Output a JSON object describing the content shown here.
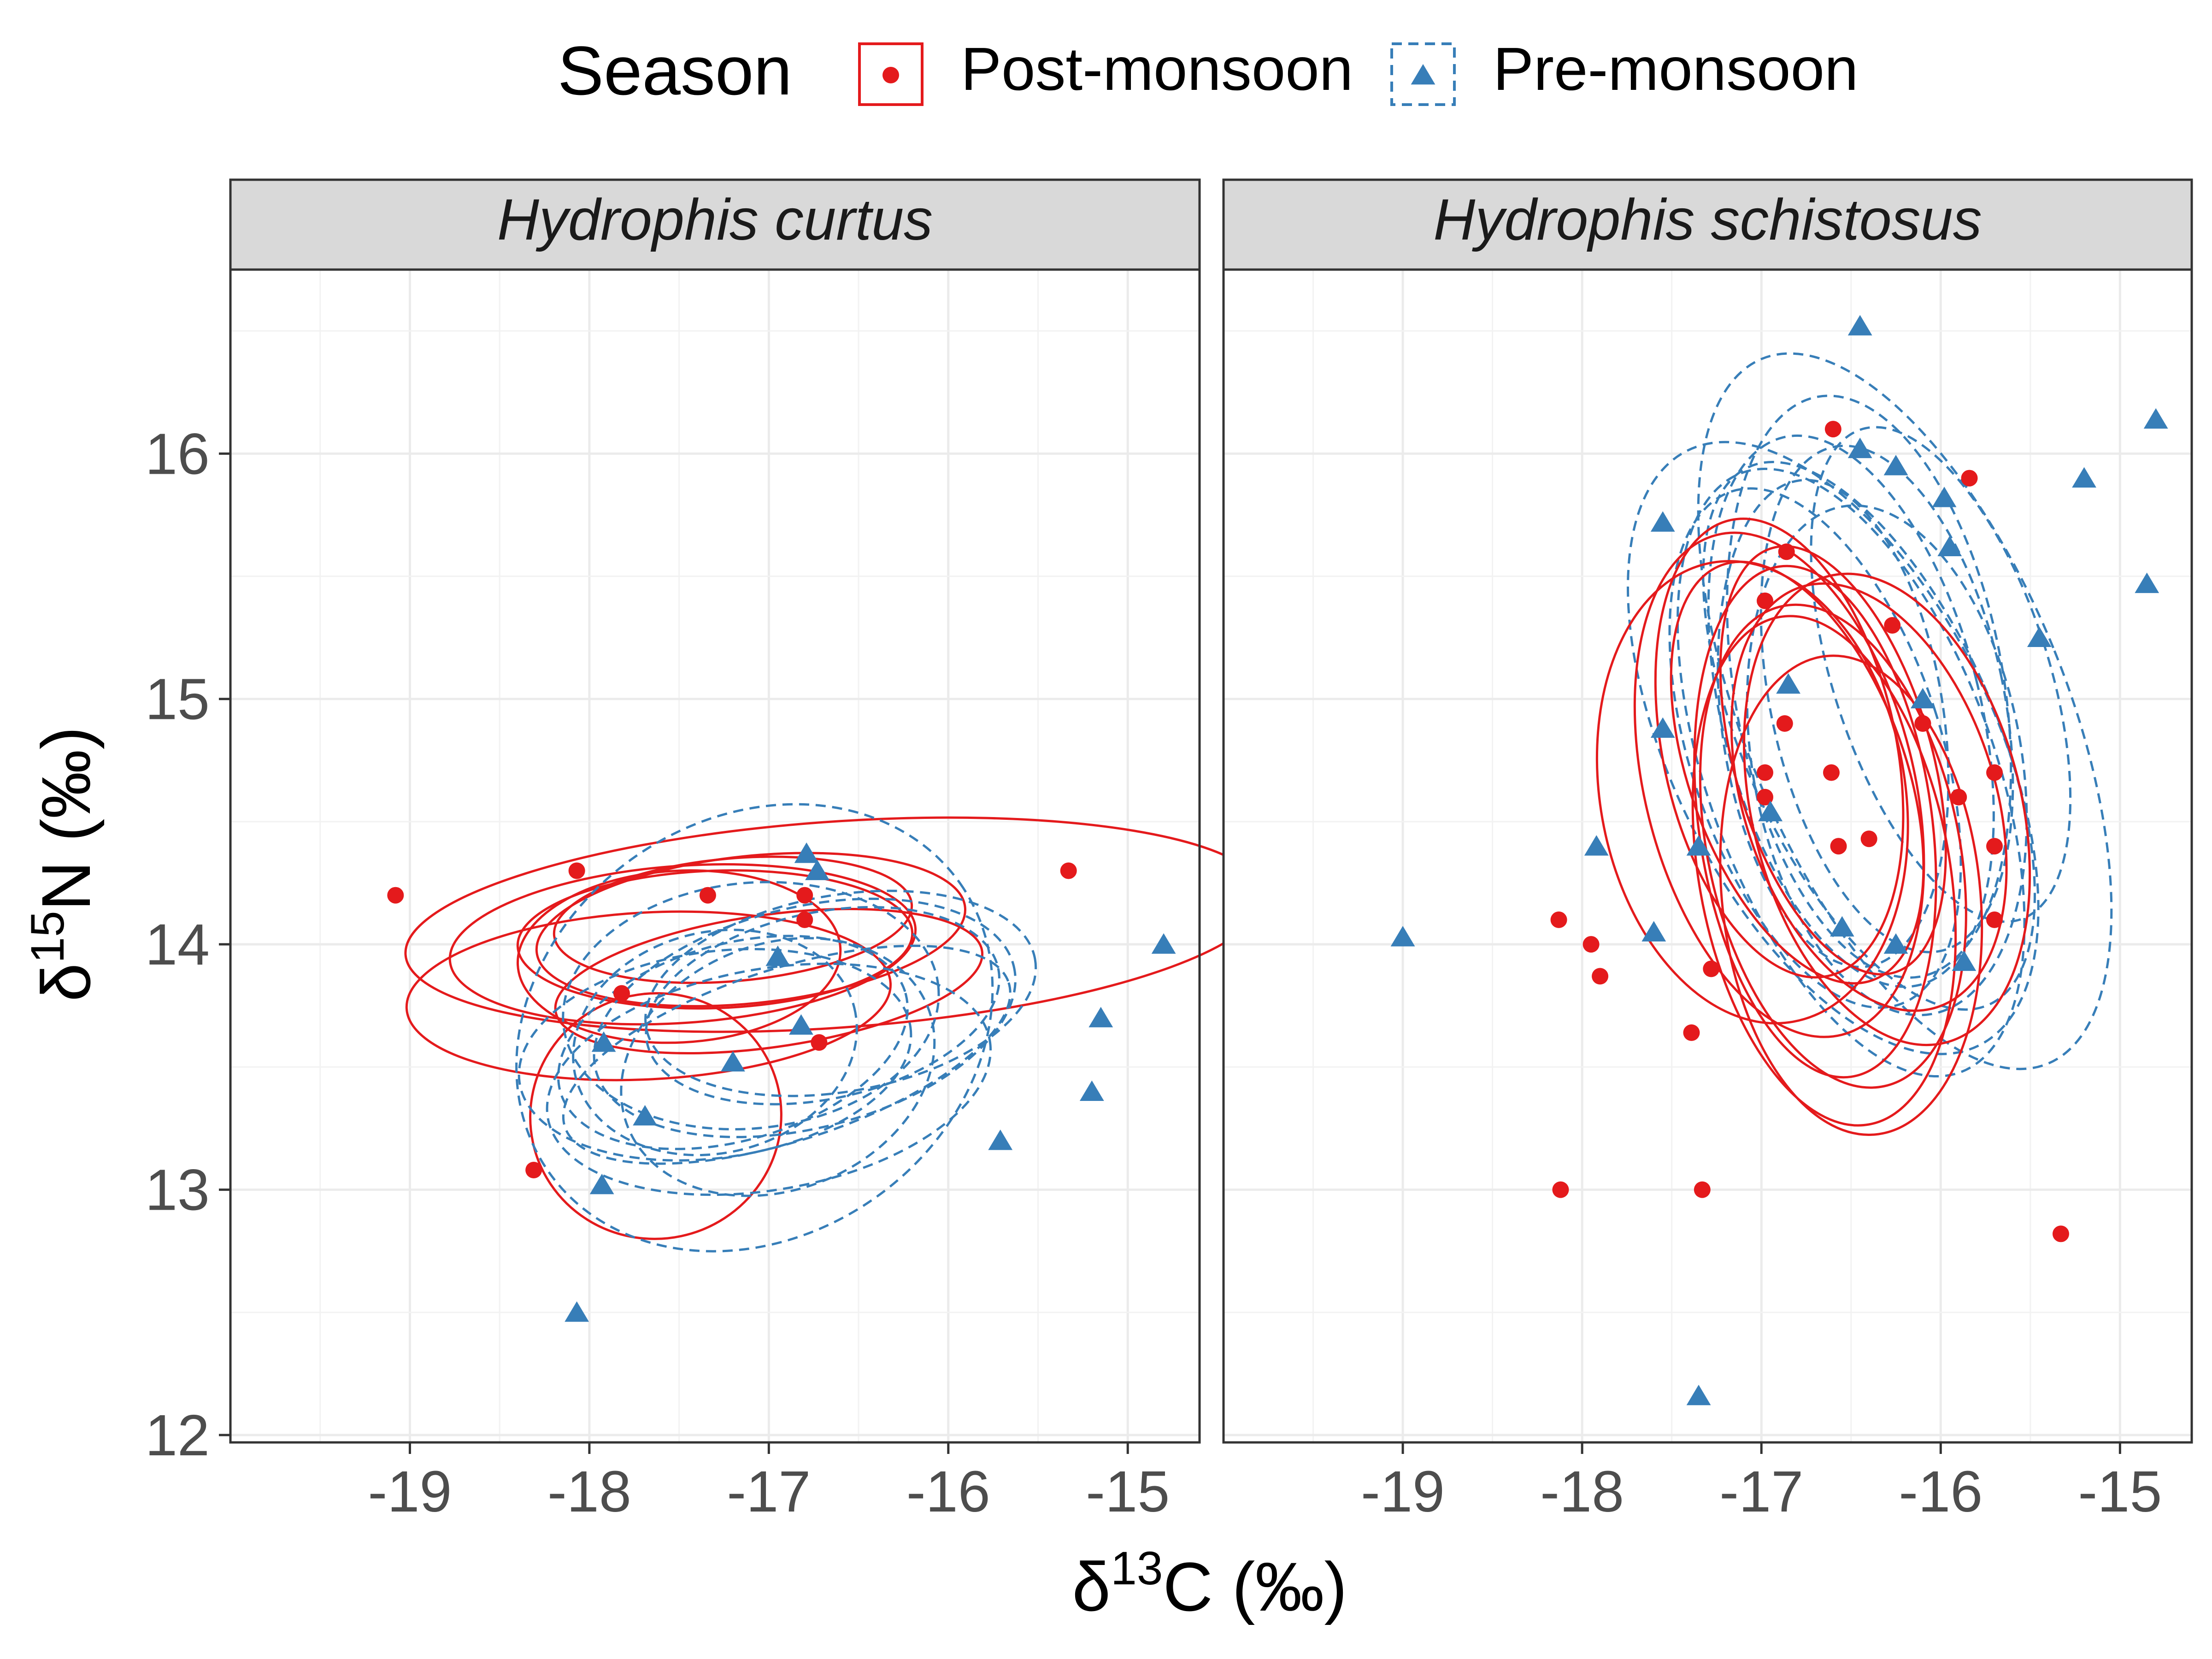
{
  "chart_data": {
    "type": "scatter",
    "facets": [
      "Hydrophis curtus",
      "Hydrophis schistosus"
    ],
    "xlabel": "δ13C (‰)",
    "ylabel": "δ15N (‰)",
    "xlim": [
      -20,
      -14.6
    ],
    "ylim": [
      11.97,
      16.75
    ],
    "x_ticks": [
      -19,
      -18,
      -17,
      -16,
      -15
    ],
    "y_ticks": [
      12,
      13,
      14,
      15,
      16
    ],
    "x_tick_labels": [
      "-19",
      "-18",
      "-17",
      "-16",
      "-15"
    ],
    "y_tick_labels": [
      "12",
      "13",
      "14",
      "15",
      "16"
    ],
    "grid": true,
    "legend": {
      "title": "Season",
      "position": "top",
      "entries": [
        {
          "label": "Post-monsoon",
          "color": "#E41A1C",
          "shape": "circle",
          "line": "solid"
        },
        {
          "label": "Pre-monsoon",
          "color": "#377EB8",
          "shape": "triangle",
          "line": "dashed"
        }
      ]
    },
    "panels": [
      {
        "name": "Hydrophis curtus",
        "series": [
          {
            "name": "Post-monsoon",
            "x": [
              -19.08,
              -18.07,
              -17.34,
              -16.8,
              -16.8,
              -16.72,
              -17.82,
              -18.31,
              -15.33
            ],
            "y": [
              14.2,
              14.3,
              14.2,
              14.2,
              14.1,
              13.6,
              13.8,
              13.08,
              14.3
            ]
          },
          {
            "name": "Pre-monsoon",
            "x": [
              -17.92,
              -17.69,
              -17.93,
              -18.07,
              -17.2,
              -16.95,
              -16.82,
              -16.79,
              -16.73,
              -15.71,
              -15.2,
              -15.15,
              -14.8
            ],
            "y": [
              13.6,
              13.3,
              13.02,
              12.5,
              13.52,
              13.95,
              13.67,
              14.37,
              14.3,
              13.2,
              13.4,
              13.7,
              14.0
            ]
          }
        ],
        "ellipses": [
          {
            "season": "Post-monsoon",
            "cx": -17.48,
            "cy": 14.0,
            "rx": 1.3,
            "ry": 0.32,
            "angle": 4
          },
          {
            "season": "Post-monsoon",
            "cx": -16.63,
            "cy": 14.08,
            "rx": 2.4,
            "ry": 0.42,
            "angle": 4
          },
          {
            "season": "Post-monsoon",
            "cx": -17.67,
            "cy": 13.79,
            "rx": 1.35,
            "ry": 0.34,
            "angle": 3
          },
          {
            "season": "Post-monsoon",
            "cx": -17.1,
            "cy": 14.06,
            "rx": 1.2,
            "ry": 0.3,
            "angle": 6
          },
          {
            "season": "Post-monsoon",
            "cx": -17.2,
            "cy": 14.1,
            "rx": 1.0,
            "ry": 0.25,
            "angle": 5
          },
          {
            "season": "Post-monsoon",
            "cx": -17.3,
            "cy": 14.02,
            "rx": 1.1,
            "ry": 0.28,
            "angle": 2
          },
          {
            "season": "Post-monsoon",
            "cx": -17.0,
            "cy": 13.85,
            "rx": 1.2,
            "ry": 0.27,
            "angle": 8
          },
          {
            "season": "Post-monsoon",
            "cx": -17.5,
            "cy": 13.95,
            "rx": 0.9,
            "ry": 0.35,
            "angle": 3
          },
          {
            "season": "Post-monsoon",
            "cx": -17.63,
            "cy": 13.3,
            "rx": 0.7,
            "ry": 0.5,
            "angle": 12
          },
          {
            "season": "Pre-monsoon",
            "cx": -17.08,
            "cy": 13.66,
            "rx": 1.4,
            "ry": 0.85,
            "angle": 35
          },
          {
            "season": "Pre-monsoon",
            "cx": -16.8,
            "cy": 13.7,
            "rx": 1.2,
            "ry": 0.45,
            "angle": 14
          },
          {
            "season": "Pre-monsoon",
            "cx": -17.0,
            "cy": 13.45,
            "rx": 1.25,
            "ry": 0.45,
            "angle": 10
          },
          {
            "season": "Pre-monsoon",
            "cx": -17.2,
            "cy": 13.6,
            "rx": 1.0,
            "ry": 0.4,
            "angle": 16
          },
          {
            "season": "Pre-monsoon",
            "cx": -16.7,
            "cy": 13.75,
            "rx": 1.0,
            "ry": 0.38,
            "angle": 12
          },
          {
            "season": "Pre-monsoon",
            "cx": -17.3,
            "cy": 13.55,
            "rx": 1.1,
            "ry": 0.42,
            "angle": 8
          },
          {
            "season": "Pre-monsoon",
            "cx": -16.9,
            "cy": 13.55,
            "rx": 1.3,
            "ry": 0.35,
            "angle": 18
          },
          {
            "season": "Pre-monsoon",
            "cx": -17.1,
            "cy": 13.75,
            "rx": 1.05,
            "ry": 0.5,
            "angle": 6
          },
          {
            "season": "Pre-monsoon",
            "cx": -16.95,
            "cy": 13.5,
            "rx": 0.9,
            "ry": 0.5,
            "angle": 22
          },
          {
            "season": "Pre-monsoon",
            "cx": -16.6,
            "cy": 13.8,
            "rx": 1.1,
            "ry": 0.4,
            "angle": 10
          },
          {
            "season": "Pre-monsoon",
            "cx": -17.3,
            "cy": 13.6,
            "rx": 0.8,
            "ry": 0.45,
            "angle": 14
          }
        ]
      },
      {
        "name": "Hydrophis schistosus",
        "series": [
          {
            "name": "Post-monsoon",
            "x": [
              -16.6,
              -15.84,
              -16.86,
              -16.98,
              -16.27,
              -16.87,
              -16.98,
              -16.98,
              -16.61,
              -16.57,
              -16.1,
              -15.9,
              -15.7,
              -15.7,
              -16.4,
              -16.1,
              -15.7,
              -18.13,
              -17.95,
              -17.9,
              -17.28,
              -17.39,
              -18.12,
              -17.33,
              -15.33
            ],
            "y": [
              16.1,
              15.9,
              15.6,
              15.4,
              15.3,
              14.9,
              14.7,
              14.6,
              14.7,
              14.4,
              14.9,
              14.6,
              14.7,
              14.4,
              14.43,
              14.9,
              14.1,
              14.1,
              14.0,
              13.87,
              13.9,
              13.64,
              13.0,
              13.0,
              12.82
            ]
          },
          {
            "season": "Pre-monsoon",
            "name": "Pre-monsoon",
            "x": [
              -19.0,
              -16.45,
              -16.45,
              -16.25,
              -15.2,
              -14.8,
              -14.85,
              -15.45,
              -15.95,
              -15.98,
              -17.55,
              -17.55,
              -17.92,
              -17.6,
              -17.35,
              -16.95,
              -16.85,
              -16.1,
              -16.25,
              -15.87,
              -16.55,
              -17.35
            ],
            "y": [
              14.03,
              16.52,
              16.02,
              15.95,
              15.9,
              16.14,
              15.47,
              15.25,
              15.62,
              15.82,
              15.72,
              14.88,
              14.4,
              14.05,
              14.4,
              14.54,
              15.06,
              15.0,
              14.0,
              13.93,
              14.07,
              12.16
            ]
          }
        ],
        "ellipses": [
          {
            "season": "Pre-monsoon",
            "cx": -16.2,
            "cy": 14.95,
            "rx": 0.9,
            "ry": 1.55,
            "angle": 22
          },
          {
            "season": "Pre-monsoon",
            "cx": -16.4,
            "cy": 15.05,
            "rx": 0.75,
            "ry": 1.2,
            "angle": 10
          },
          {
            "season": "Pre-monsoon",
            "cx": -16.5,
            "cy": 14.95,
            "rx": 0.72,
            "ry": 1.15,
            "angle": 14
          },
          {
            "season": "Pre-monsoon",
            "cx": -16.7,
            "cy": 14.8,
            "rx": 0.7,
            "ry": 1.1,
            "angle": 18
          },
          {
            "season": "Pre-monsoon",
            "cx": -16.5,
            "cy": 14.7,
            "rx": 0.8,
            "ry": 1.3,
            "angle": 20
          },
          {
            "season": "Pre-monsoon",
            "cx": -16.3,
            "cy": 15.0,
            "rx": 0.65,
            "ry": 1.05,
            "angle": 12
          },
          {
            "season": "Pre-monsoon",
            "cx": -16.6,
            "cy": 14.9,
            "rx": 0.62,
            "ry": 1.0,
            "angle": 8
          },
          {
            "season": "Pre-monsoon",
            "cx": -16.4,
            "cy": 14.85,
            "rx": 0.7,
            "ry": 1.2,
            "angle": 24
          },
          {
            "season": "Pre-monsoon",
            "cx": -16.0,
            "cy": 15.1,
            "rx": 0.6,
            "ry": 1.05,
            "angle": 18
          },
          {
            "season": "Pre-monsoon",
            "cx": -16.3,
            "cy": 14.75,
            "rx": 0.75,
            "ry": 1.05,
            "angle": 10
          },
          {
            "season": "Pre-monsoon",
            "cx": -16.6,
            "cy": 14.8,
            "rx": 0.9,
            "ry": 1.35,
            "angle": 26
          },
          {
            "season": "Post-monsoon",
            "cx": -16.9,
            "cy": 14.65,
            "rx": 0.75,
            "ry": 1.05,
            "angle": 14
          },
          {
            "season": "Post-monsoon",
            "cx": -16.5,
            "cy": 14.2,
            "rx": 0.72,
            "ry": 0.98,
            "angle": 6
          },
          {
            "season": "Post-monsoon",
            "cx": -16.6,
            "cy": 14.4,
            "rx": 0.7,
            "ry": 1.0,
            "angle": 12
          },
          {
            "season": "Post-monsoon",
            "cx": -17.05,
            "cy": 14.62,
            "rx": 0.85,
            "ry": 0.95,
            "angle": 10
          },
          {
            "season": "Post-monsoon",
            "cx": -16.7,
            "cy": 14.5,
            "rx": 0.65,
            "ry": 1.05,
            "angle": 8
          },
          {
            "season": "Post-monsoon",
            "cx": -16.4,
            "cy": 14.6,
            "rx": 0.7,
            "ry": 0.9,
            "angle": 18
          },
          {
            "season": "Post-monsoon",
            "cx": -16.8,
            "cy": 14.7,
            "rx": 0.6,
            "ry": 0.9,
            "angle": 20
          },
          {
            "season": "Post-monsoon",
            "cx": -16.9,
            "cy": 14.8,
            "rx": 0.65,
            "ry": 0.95,
            "angle": 12
          },
          {
            "season": "Post-monsoon",
            "cx": -16.3,
            "cy": 14.55,
            "rx": 0.75,
            "ry": 0.98,
            "angle": 14
          },
          {
            "season": "Post-monsoon",
            "cx": -16.6,
            "cy": 14.75,
            "rx": 0.55,
            "ry": 0.9,
            "angle": 16
          },
          {
            "season": "Post-monsoon",
            "cx": -16.65,
            "cy": 14.3,
            "rx": 0.7,
            "ry": 1.05,
            "angle": 10
          }
        ]
      }
    ]
  }
}
